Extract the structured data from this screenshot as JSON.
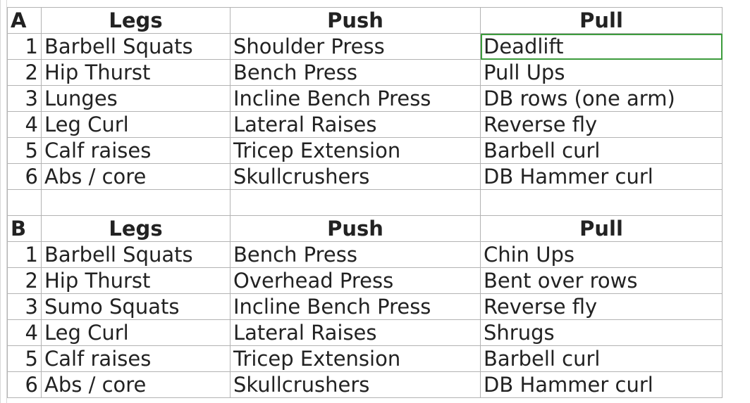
{
  "tables": [
    {
      "label": "A",
      "headers": [
        "Legs",
        "Push",
        "Pull"
      ],
      "rows": [
        {
          "n": "1",
          "legs": "Barbell Squats",
          "push": "Shoulder Press",
          "pull": "Deadlift"
        },
        {
          "n": "2",
          "legs": "Hip Thurst",
          "push": "Bench Press",
          "pull": "Pull Ups"
        },
        {
          "n": "3",
          "legs": "Lunges",
          "push": "Incline Bench Press",
          "pull": "DB rows (one arm)"
        },
        {
          "n": "4",
          "legs": "Leg Curl",
          "push": "Lateral Raises",
          "pull": "Reverse fly"
        },
        {
          "n": "5",
          "legs": "Calf raises",
          "push": "Tricep Extension",
          "pull": "Barbell curl"
        },
        {
          "n": "6",
          "legs": "Abs / core",
          "push": "Skullcrushers",
          "pull": "DB Hammer curl"
        }
      ]
    },
    {
      "label": "B",
      "headers": [
        "Legs",
        "Push",
        "Pull"
      ],
      "rows": [
        {
          "n": "1",
          "legs": "Barbell Squats",
          "push": "Bench Press",
          "pull": "Chin Ups"
        },
        {
          "n": "2",
          "legs": "Hip Thurst",
          "push": "Overhead Press",
          "pull": "Bent over rows"
        },
        {
          "n": "3",
          "legs": "Sumo Squats",
          "push": "Incline Bench Press",
          "pull": "Reverse fly"
        },
        {
          "n": "4",
          "legs": "Leg Curl",
          "push": "Lateral Raises",
          "pull": "Shrugs"
        },
        {
          "n": "5",
          "legs": "Calf raises",
          "push": "Tricep Extension",
          "pull": "Barbell curl"
        },
        {
          "n": "6",
          "legs": "Abs / core",
          "push": "Skullcrushers",
          "pull": "DB Hammer curl"
        }
      ]
    }
  ],
  "selection_color": "#3c9b3c",
  "grid_color": "#b3b3b3"
}
